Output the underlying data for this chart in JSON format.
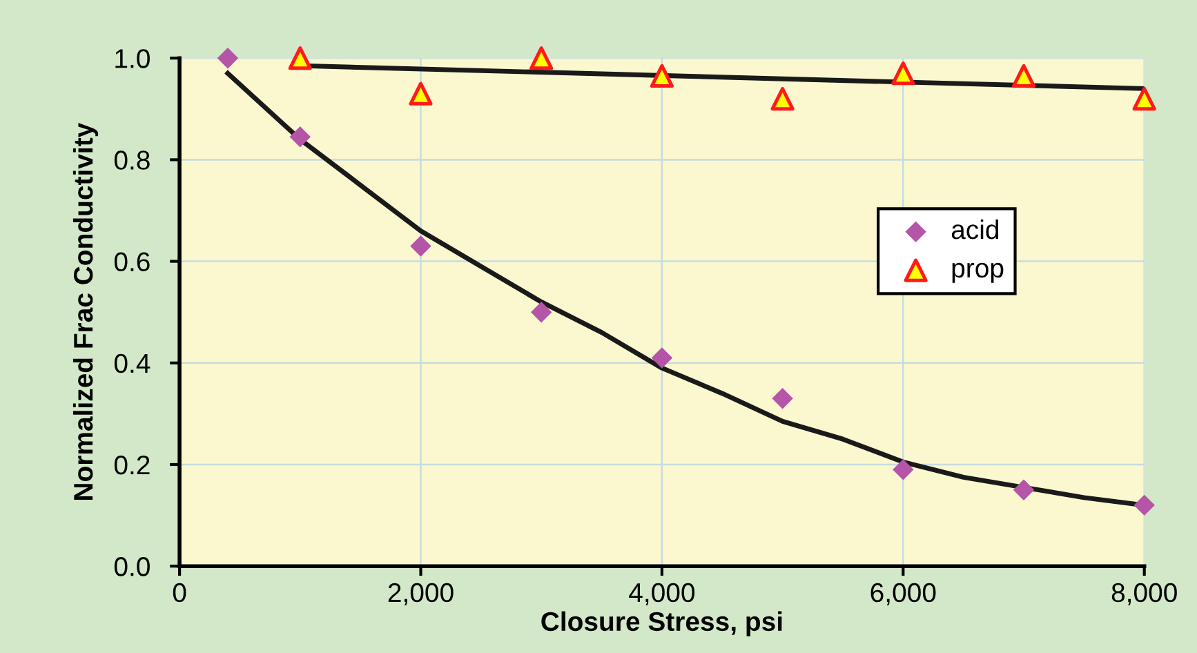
{
  "chart_data": {
    "type": "scatter",
    "xlabel": "Closure Stress, psi",
    "ylabel": "Normalized Frac Conductivity",
    "xlim": [
      0,
      8000
    ],
    "ylim": [
      0,
      1.0
    ],
    "xticks": [
      0,
      {
        "value": 2000,
        "label": "2,000"
      },
      {
        "value": 4000,
        "label": "4,000"
      },
      {
        "value": 6000,
        "label": "6,000"
      },
      {
        "value": 8000,
        "label": "8,000"
      }
    ],
    "yticks": [
      {
        "value": 0,
        "label": "0.0"
      },
      0.2,
      0.4,
      0.6,
      0.8,
      {
        "value": 1,
        "label": "1.0"
      }
    ],
    "grid": true,
    "legend": "right",
    "series": [
      {
        "name": "acid",
        "marker": "diamond",
        "color": "#b455a8",
        "x": [
          400,
          1000,
          2000,
          3000,
          4000,
          5000,
          6000,
          7000,
          8000
        ],
        "values": [
          1.0,
          0.845,
          0.63,
          0.5,
          0.41,
          0.33,
          0.19,
          0.15,
          0.12
        ]
      },
      {
        "name": "prop",
        "marker": "triangle",
        "color": "#ffff00",
        "x": [
          1000,
          2000,
          3000,
          4000,
          5000,
          6000,
          7000,
          8000
        ],
        "values": [
          1.0,
          0.93,
          1.0,
          0.965,
          0.92,
          0.97,
          0.965,
          0.92
        ]
      },
      {
        "type": "line",
        "color": "#1a1a1a",
        "x": [
          400,
          1000,
          1500,
          2000,
          2500,
          3000,
          3500,
          4000,
          4500,
          5000,
          5500,
          6000,
          6500,
          7000,
          7500,
          8000
        ],
        "values": [
          0.97,
          0.84,
          0.75,
          0.66,
          0.59,
          0.52,
          0.46,
          0.39,
          0.34,
          0.285,
          0.25,
          0.205,
          0.175,
          0.155,
          0.135,
          0.12
        ]
      },
      {
        "type": "line",
        "color": "#1a1a1a",
        "x": [
          1000,
          8000
        ],
        "values": [
          0.985,
          0.94
        ]
      }
    ]
  }
}
